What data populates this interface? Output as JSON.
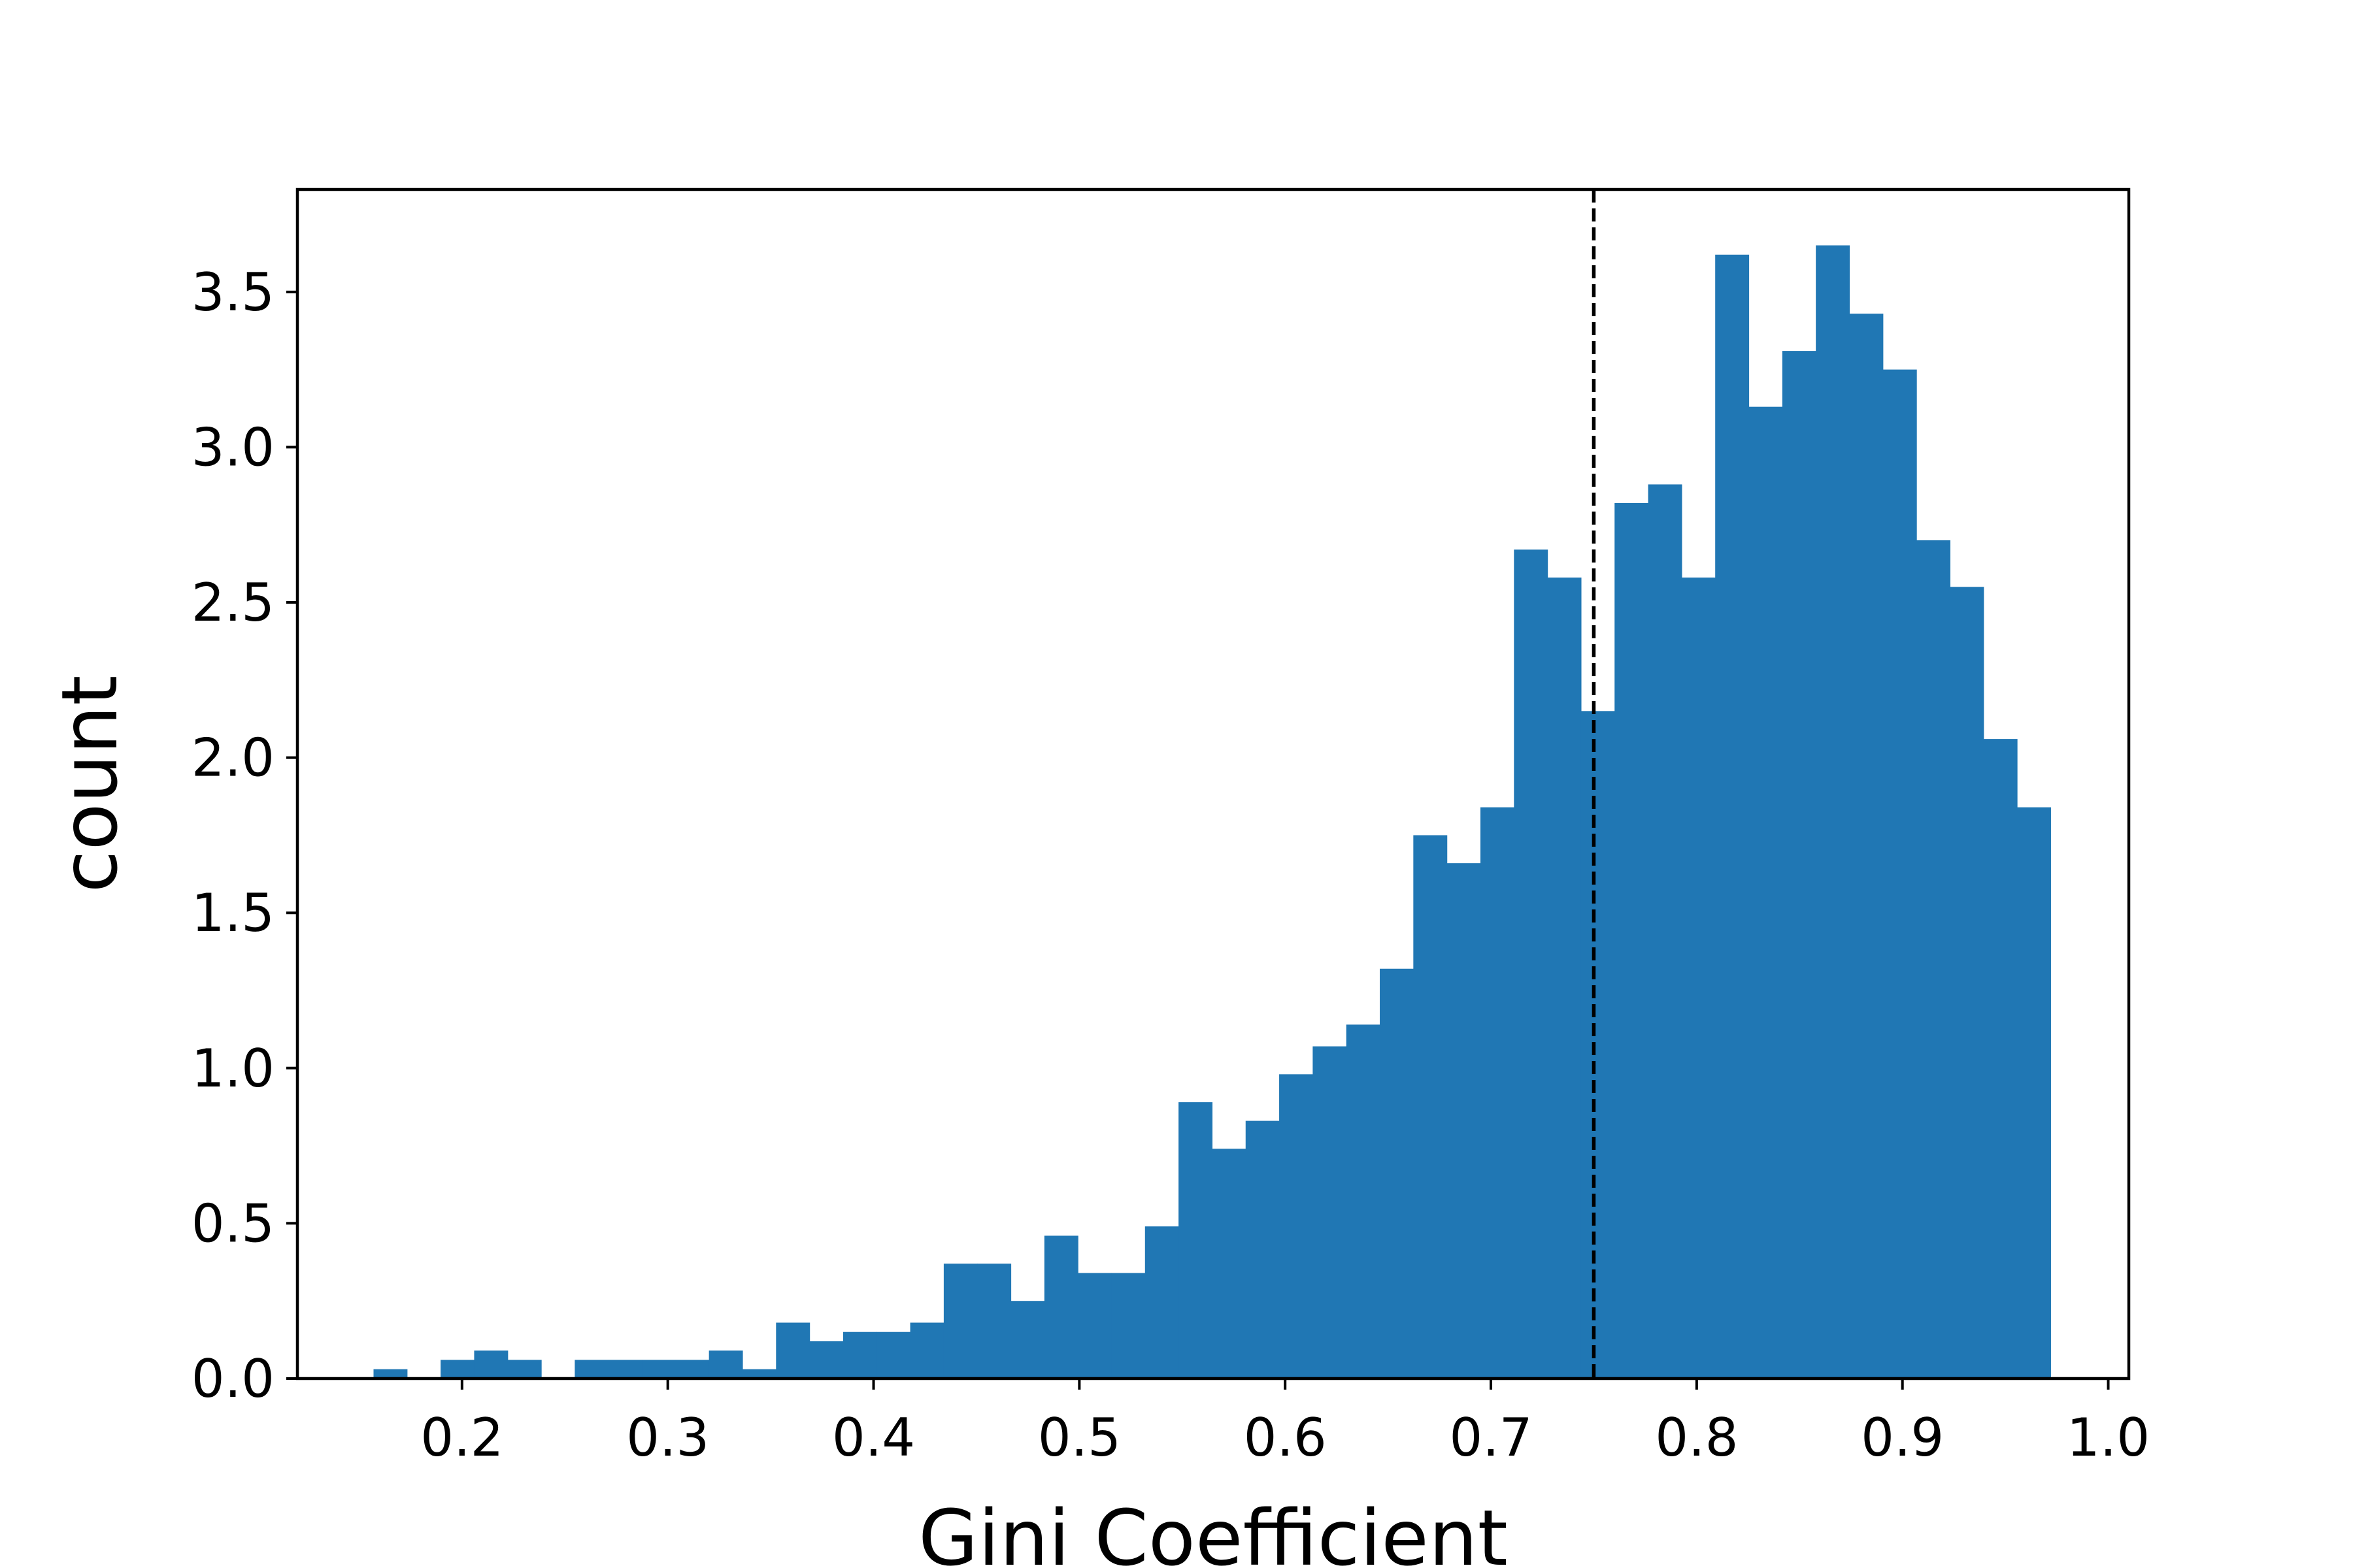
{
  "chart_data": {
    "type": "bar",
    "title": "",
    "xlabel": "Gini Coefficient",
    "ylabel": "count",
    "xlim": [
      0.12,
      1.01
    ],
    "ylim": [
      0,
      3.83
    ],
    "bin_width": 0.0163,
    "bin_start": 0.157,
    "values": [
      0.03,
      0.0,
      0.06,
      0.09,
      0.06,
      0.0,
      0.06,
      0.06,
      0.06,
      0.06,
      0.09,
      0.03,
      0.18,
      0.12,
      0.15,
      0.15,
      0.18,
      0.37,
      0.37,
      0.25,
      0.46,
      0.34,
      0.34,
      0.49,
      0.89,
      0.74,
      0.83,
      0.98,
      1.07,
      1.14,
      1.32,
      1.75,
      1.66,
      1.84,
      2.67,
      2.58,
      2.15,
      2.82,
      2.88,
      2.58,
      3.62,
      3.13,
      3.31,
      3.65,
      3.43,
      3.25,
      2.7,
      2.55,
      2.06,
      1.84
    ],
    "x_ticks": [
      "0.2",
      "0.3",
      "0.4",
      "0.5",
      "0.6",
      "0.7",
      "0.8",
      "0.9",
      "1.0"
    ],
    "y_ticks": [
      "0.0",
      "0.5",
      "1.0",
      "1.5",
      "2.0",
      "2.5",
      "3.0",
      "3.5"
    ],
    "reference_line": {
      "x": 0.75,
      "style": "dashed"
    },
    "grid": false,
    "colors": {
      "bar": "#2077b4",
      "reference_line": "#000000",
      "axis": "#000000"
    }
  }
}
